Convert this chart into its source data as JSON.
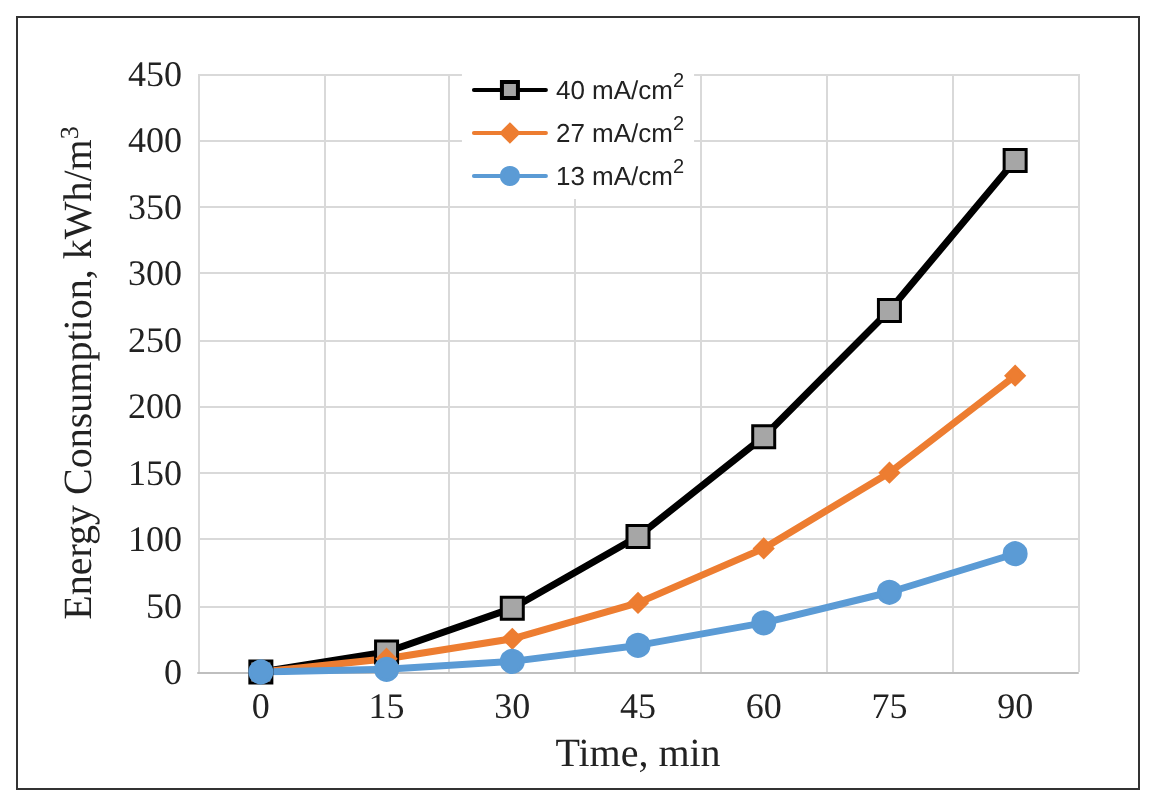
{
  "chart_data": {
    "type": "line",
    "xlabel": "Time, min",
    "ylabel": "Energy Consumption, kWh/m$^{3}$",
    "categories": [
      "0",
      "15",
      "30",
      "45",
      "60",
      "75",
      "90"
    ],
    "series": [
      {
        "name": "40 mA/cm$^{2}$",
        "color": "#000000",
        "marker": "square",
        "values": [
          0,
          15,
          48,
          102,
          177,
          272,
          385
        ]
      },
      {
        "name": "27 mA/cm$^{2}$",
        "color": "#ed7d31",
        "marker": "diamond",
        "values": [
          0,
          10,
          25,
          52,
          93,
          150,
          223
        ]
      },
      {
        "name": "13 mA/cm$^{2}$",
        "color": "#5b9bd5",
        "marker": "circle",
        "values": [
          0,
          2,
          8,
          20,
          37,
          60,
          89
        ]
      }
    ],
    "ylim": [
      0,
      450
    ],
    "yticks": [
      0,
      50,
      100,
      150,
      200,
      250,
      300,
      350,
      400,
      450
    ],
    "grid": true,
    "legend": "top",
    "line_style": "solid"
  }
}
